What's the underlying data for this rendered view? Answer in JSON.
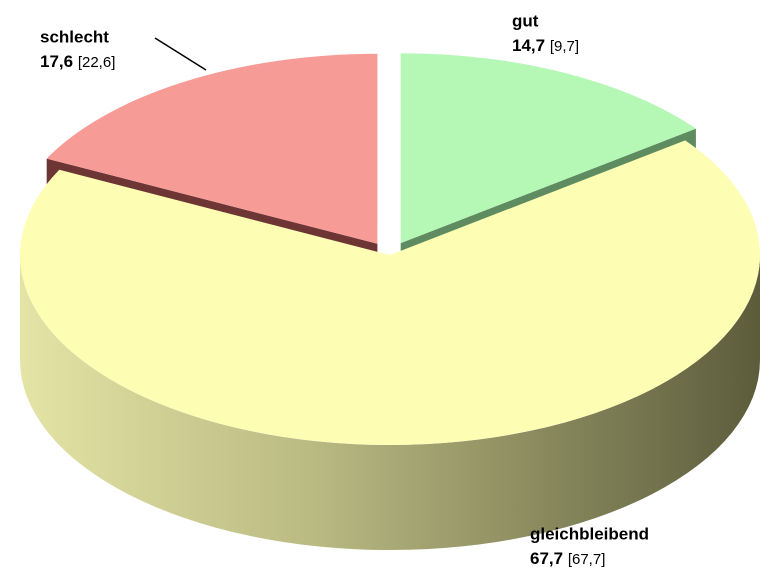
{
  "chart_data": {
    "type": "pie3d",
    "categories": [
      "gut",
      "gleichbleibend",
      "schlecht"
    ],
    "values": [
      14.7,
      67.7,
      17.6
    ],
    "value_labels": [
      "14,7",
      "67,7",
      "17,6"
    ],
    "previous_values": [
      9.7,
      67.7,
      22.6
    ],
    "previous_value_labels": [
      "[9,7]",
      "[67,7]",
      "[22,6]"
    ],
    "colors": [
      "#b5f7b5",
      "#fdfdb3",
      "#f79b97"
    ],
    "side_colors": [
      "#5e8b60",
      "#5c5c3c",
      "#6e3535"
    ],
    "exploded": [
      true,
      false,
      true
    ]
  }
}
